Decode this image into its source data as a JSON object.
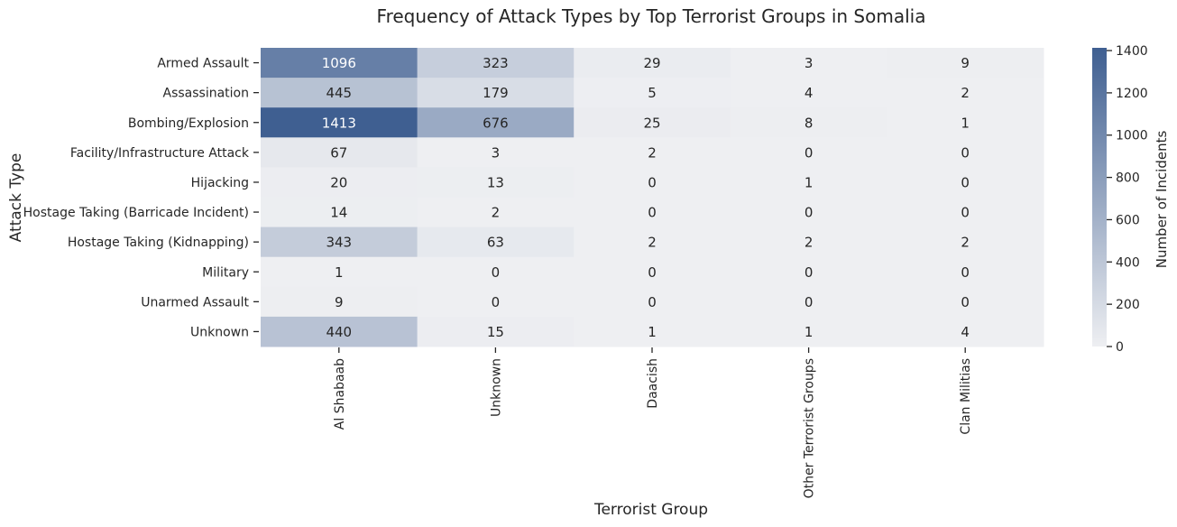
{
  "chart_data": {
    "type": "heatmap",
    "title": "Frequency of Attack Types by Top Terrorist Groups in Somalia",
    "xlabel": "Terrorist Group",
    "ylabel": "Attack Type",
    "x_categories": [
      "Al Shabaab",
      "Unknown",
      "Daacish",
      "Other Terrorist Groups",
      "Clan Militias"
    ],
    "y_categories": [
      "Armed Assault",
      "Assassination",
      "Bombing/Explosion",
      "Facility/Infrastructure Attack",
      "Hijacking",
      "Hostage Taking (Barricade Incident)",
      "Hostage Taking (Kidnapping)",
      "Military",
      "Unarmed Assault",
      "Unknown"
    ],
    "values": [
      [
        1096,
        323,
        29,
        3,
        9
      ],
      [
        445,
        179,
        5,
        4,
        2
      ],
      [
        1413,
        676,
        25,
        8,
        1
      ],
      [
        67,
        3,
        2,
        0,
        0
      ],
      [
        20,
        13,
        0,
        1,
        0
      ],
      [
        14,
        2,
        0,
        0,
        0
      ],
      [
        343,
        63,
        2,
        2,
        2
      ],
      [
        1,
        0,
        0,
        0,
        0
      ],
      [
        9,
        0,
        0,
        0,
        0
      ],
      [
        440,
        15,
        1,
        1,
        4
      ]
    ],
    "colorbar": {
      "label": "Number of Incidents",
      "range": [
        0,
        1413
      ],
      "ticks": [
        0,
        200,
        400,
        600,
        800,
        1000,
        1200,
        1400
      ],
      "color_low": "#eeeff2",
      "color_high": "#3f5f91"
    },
    "legend": "colorbar-right"
  }
}
